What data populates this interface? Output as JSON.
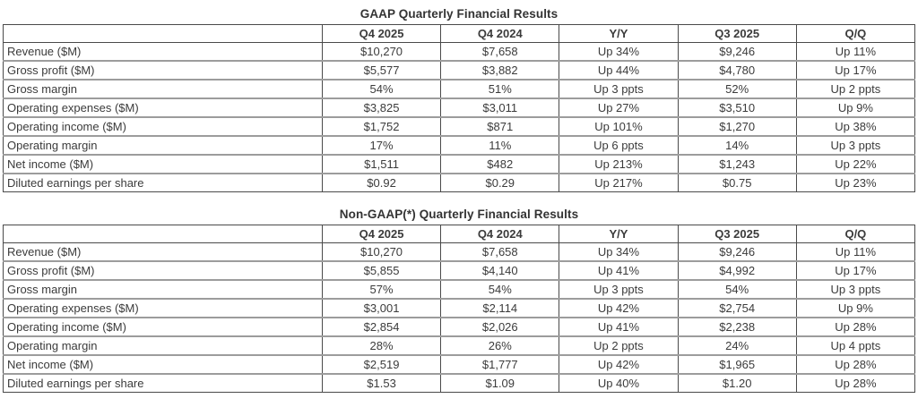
{
  "colors": {
    "text": "#3b3b3b",
    "title_text": "#333333",
    "border_dark": "#4a4a4a",
    "border_gray": "#9c9c9c",
    "background": "#ffffff"
  },
  "tables": [
    {
      "title": "GAAP Quarterly Financial Results",
      "columns": [
        "",
        "Q4 2025",
        "Q4 2024",
        "Y/Y",
        "Q3 2025",
        "Q/Q"
      ],
      "rows": [
        {
          "label": "Revenue ($M)",
          "values": [
            "$10,270",
            "$7,658",
            "Up 34%",
            "$9,246",
            "Up 11%"
          ]
        },
        {
          "label": "Gross profit ($M)",
          "values": [
            "$5,577",
            "$3,882",
            "Up 44%",
            "$4,780",
            "Up 17%"
          ]
        },
        {
          "label": "Gross margin",
          "values": [
            "54%",
            "51%",
            "Up 3 ppts",
            "52%",
            "Up 2 ppts"
          ]
        },
        {
          "label": "Operating expenses ($M)",
          "values": [
            "$3,825",
            "$3,011",
            "Up 27%",
            "$3,510",
            "Up 9%"
          ]
        },
        {
          "label": "Operating income ($M)",
          "values": [
            "$1,752",
            "$871",
            "Up 101%",
            "$1,270",
            "Up 38%"
          ]
        },
        {
          "label": "Operating margin",
          "values": [
            "17%",
            "11%",
            "Up 6 ppts",
            "14%",
            "Up 3 ppts"
          ]
        },
        {
          "label": "Net income ($M)",
          "values": [
            "$1,511",
            "$482",
            "Up 213%",
            "$1,243",
            "Up 22%"
          ]
        },
        {
          "label": "Diluted earnings per share",
          "values": [
            "$0.92",
            "$0.29",
            "Up 217%",
            "$0.75",
            "Up 23%"
          ]
        }
      ]
    },
    {
      "title": "Non-GAAP(*) Quarterly Financial Results",
      "columns": [
        "",
        "Q4 2025",
        "Q4 2024",
        "Y/Y",
        "Q3 2025",
        "Q/Q"
      ],
      "rows": [
        {
          "label": "Revenue ($M)",
          "values": [
            "$10,270",
            "$7,658",
            "Up 34%",
            "$9,246",
            "Up 11%"
          ]
        },
        {
          "label": "Gross profit ($M)",
          "values": [
            "$5,855",
            "$4,140",
            "Up 41%",
            "$4,992",
            "Up 17%"
          ]
        },
        {
          "label": "Gross margin",
          "values": [
            "57%",
            "54%",
            "Up 3 ppts",
            "54%",
            "Up 3 ppts"
          ]
        },
        {
          "label": "Operating expenses ($M)",
          "values": [
            "$3,001",
            "$2,114",
            "Up 42%",
            "$2,754",
            "Up 9%"
          ]
        },
        {
          "label": "Operating income ($M)",
          "values": [
            "$2,854",
            "$2,026",
            "Up 41%",
            "$2,238",
            "Up 28%"
          ]
        },
        {
          "label": "Operating margin",
          "values": [
            "28%",
            "26%",
            "Up 2 ppts",
            "24%",
            "Up 4 ppts"
          ]
        },
        {
          "label": "Net income ($M)",
          "values": [
            "$2,519",
            "$1,777",
            "Up 42%",
            "$1,965",
            "Up 28%"
          ]
        },
        {
          "label": "Diluted earnings per share",
          "values": [
            "$1.53",
            "$1.09",
            "Up 40%",
            "$1.20",
            "Up 28%"
          ]
        }
      ]
    }
  ]
}
